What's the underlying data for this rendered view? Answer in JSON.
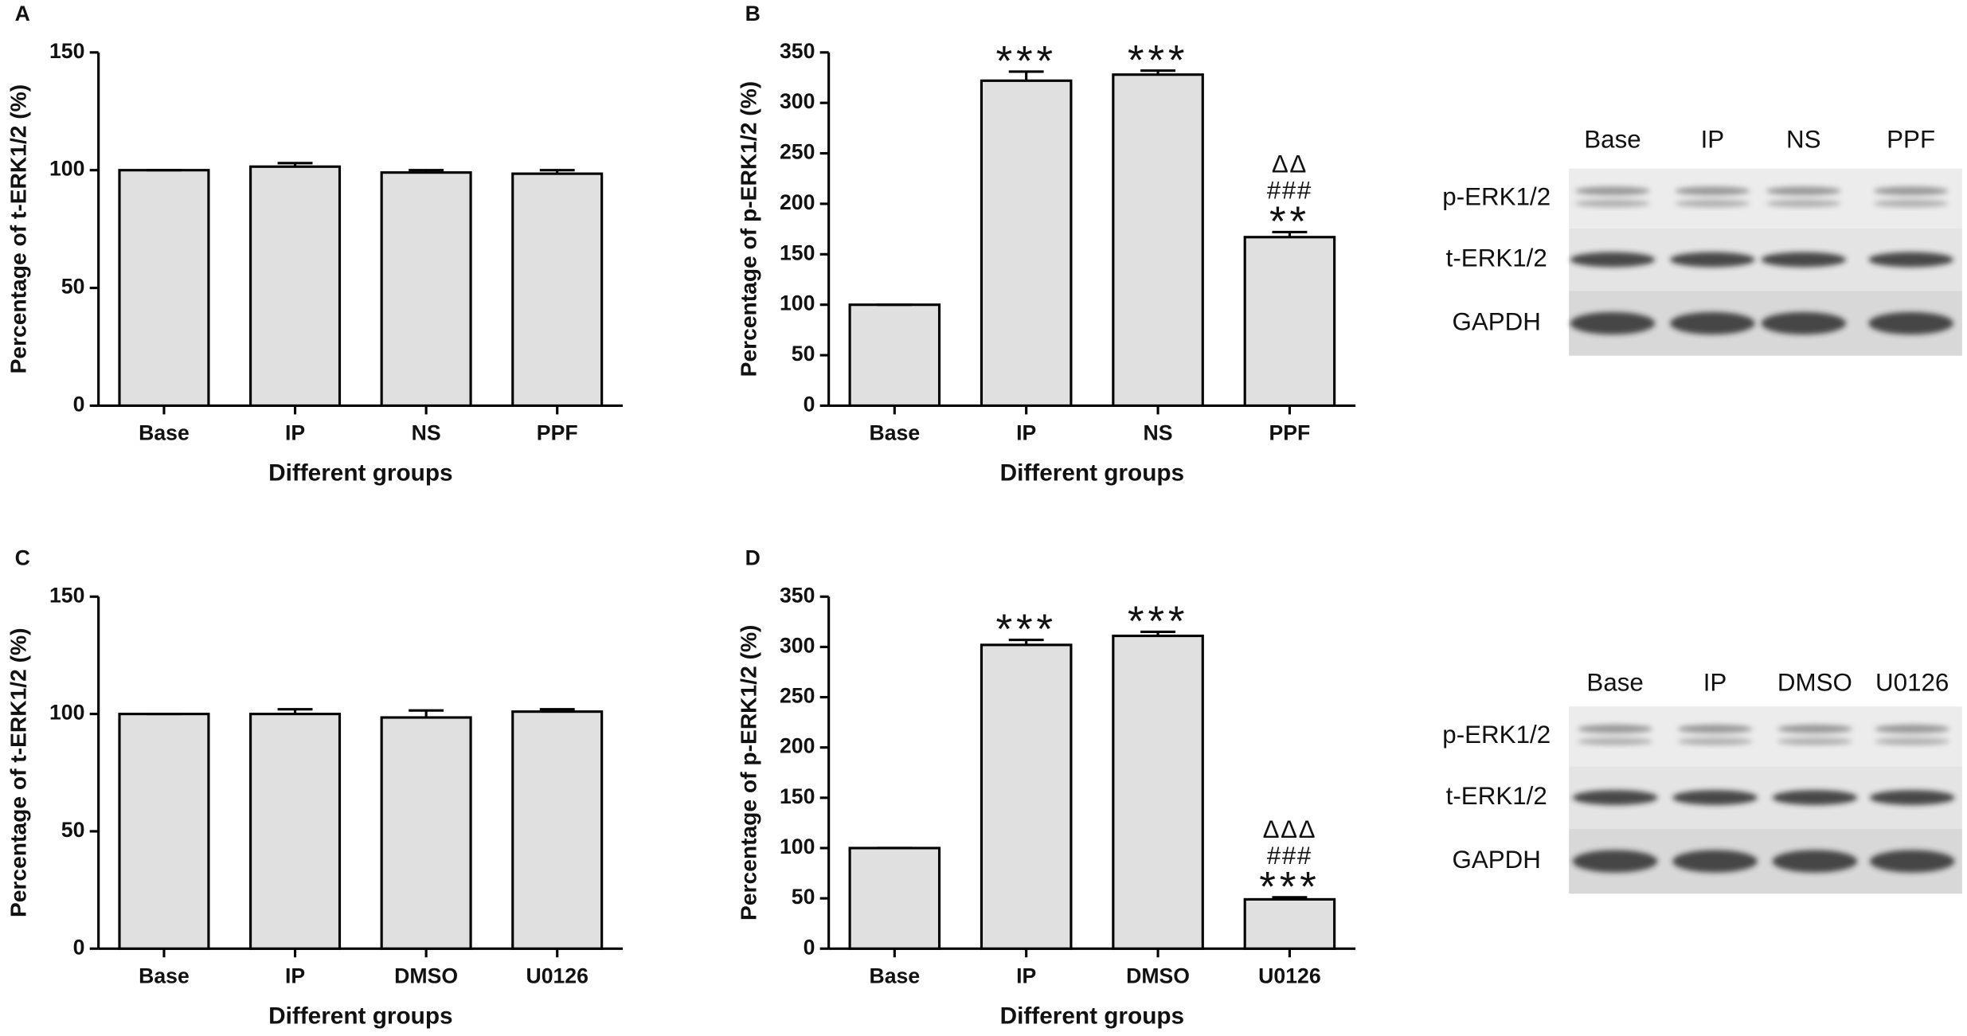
{
  "chart_data": [
    {
      "type": "bar",
      "panel": "A",
      "ylabel": "Percentage of t-ERK1/2 (%)",
      "xlabel": "Different groups",
      "categories": [
        "Base",
        "IP",
        "NS",
        "PPF"
      ],
      "values": [
        100,
        101.5,
        99,
        98.5
      ],
      "errors": [
        0,
        1.5,
        1,
        1.5
      ],
      "color": "#e0e0e0",
      "ylim": [
        0,
        150
      ],
      "yticks": [
        0,
        50,
        100,
        150
      ],
      "annotations": []
    },
    {
      "type": "bar",
      "panel": "B",
      "ylabel": "Percentage of p-ERK1/2 (%)",
      "xlabel": "Different groups",
      "categories": [
        "Base",
        "IP",
        "NS",
        "PPF"
      ],
      "values": [
        100,
        322,
        328,
        167
      ],
      "errors": [
        0,
        9,
        4,
        5
      ],
      "color": "#e0e0e0",
      "ylim": [
        0,
        350
      ],
      "yticks": [
        0,
        50,
        100,
        150,
        200,
        250,
        300,
        350
      ],
      "annotations": [
        {
          "category": "IP",
          "text": [
            "***"
          ]
        },
        {
          "category": "NS",
          "text": [
            "***"
          ]
        },
        {
          "category": "PPF",
          "text": [
            "ΔΔ",
            "###",
            "**"
          ]
        }
      ]
    },
    {
      "type": "bar",
      "panel": "C",
      "ylabel": "Percentage of t-ERK1/2 (%)",
      "xlabel": "Different groups",
      "categories": [
        "Base",
        "IP",
        "DMSO",
        "U0126"
      ],
      "values": [
        100,
        100,
        98.5,
        101
      ],
      "errors": [
        0,
        2,
        3,
        1
      ],
      "color": "#e0e0e0",
      "ylim": [
        0,
        150
      ],
      "yticks": [
        0,
        50,
        100,
        150
      ],
      "annotations": []
    },
    {
      "type": "bar",
      "panel": "D",
      "ylabel": "Percentage of p-ERK1/2 (%)",
      "xlabel": "Different groups",
      "categories": [
        "Base",
        "IP",
        "DMSO",
        "U0126"
      ],
      "values": [
        100,
        302,
        311,
        49
      ],
      "errors": [
        0,
        5,
        4,
        2
      ],
      "color": "#e0e0e0",
      "ylim": [
        0,
        350
      ],
      "yticks": [
        0,
        50,
        100,
        150,
        200,
        250,
        300,
        350
      ],
      "annotations": [
        {
          "category": "IP",
          "text": [
            "***"
          ]
        },
        {
          "category": "DMSO",
          "text": [
            "***"
          ]
        },
        {
          "category": "U0126",
          "text": [
            "ΔΔΔ",
            "###",
            "***"
          ]
        }
      ]
    }
  ],
  "blots": [
    {
      "lanes": [
        "Base",
        "IP",
        "NS",
        "PPF"
      ],
      "rows": [
        "p-ERK1/2",
        "t-ERK1/2",
        "GAPDH"
      ]
    },
    {
      "lanes": [
        "Base",
        "IP",
        "DMSO",
        "U0126"
      ],
      "rows": [
        "p-ERK1/2",
        "t-ERK1/2",
        "GAPDH"
      ]
    }
  ]
}
